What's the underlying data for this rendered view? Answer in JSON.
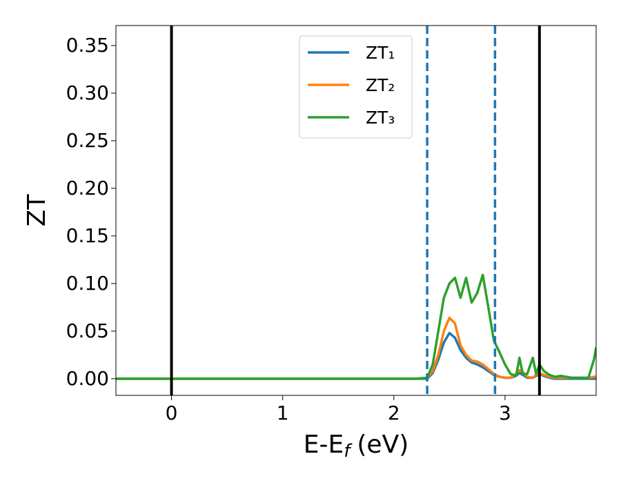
{
  "chart_data": {
    "type": "line",
    "ylabel": "ZT",
    "xlabel_parts": [
      "E-E",
      "f",
      "(eV)"
    ],
    "x": [
      -0.5,
      0,
      1,
      2,
      2.2,
      2.3,
      2.35,
      2.4,
      2.45,
      2.5,
      2.55,
      2.6,
      2.65,
      2.7,
      2.75,
      2.8,
      2.85,
      2.9,
      2.95,
      3.0,
      3.05,
      3.1,
      3.13,
      3.16,
      3.2,
      3.25,
      3.28,
      3.31,
      3.35,
      3.4,
      3.45,
      3.5,
      3.55,
      3.6,
      3.65,
      3.7,
      3.75,
      3.8,
      3.82
    ],
    "series": [
      {
        "name": "ZT₁",
        "color": "#1f77b4",
        "values": [
          0,
          0,
          0,
          0,
          0,
          0,
          0.006,
          0.02,
          0.038,
          0.048,
          0.043,
          0.03,
          0.022,
          0.017,
          0.015,
          0.012,
          0.008,
          0.004,
          0.002,
          0.001,
          0.001,
          0.003,
          0.006,
          0.004,
          0.001,
          0.001,
          0.003,
          0.005,
          0.003,
          0.001,
          0,
          0,
          0,
          0,
          0,
          0,
          0,
          0,
          0
        ]
      },
      {
        "name": "ZT₂",
        "color": "#ff7f0e",
        "values": [
          0,
          0,
          0,
          0,
          0,
          0.001,
          0.008,
          0.025,
          0.05,
          0.064,
          0.058,
          0.035,
          0.025,
          0.019,
          0.018,
          0.015,
          0.01,
          0.005,
          0.002,
          0.001,
          0.001,
          0.005,
          0.009,
          0.007,
          0.002,
          0.001,
          0.004,
          0.006,
          0.004,
          0.002,
          0.001,
          0.001,
          0.001,
          0.001,
          0.001,
          0.001,
          0.001,
          0.002,
          0.002
        ]
      },
      {
        "name": "ZT₃",
        "color": "#2ca02c",
        "values": [
          0,
          0,
          0,
          0,
          0,
          0.001,
          0.015,
          0.05,
          0.085,
          0.1,
          0.106,
          0.085,
          0.106,
          0.08,
          0.09,
          0.109,
          0.075,
          0.04,
          0.028,
          0.015,
          0.005,
          0.003,
          0.022,
          0.005,
          0.005,
          0.022,
          0.005,
          0.015,
          0.008,
          0.004,
          0.002,
          0.003,
          0.002,
          0.001,
          0.001,
          0.001,
          0.001,
          0.02,
          0.033
        ]
      }
    ],
    "vlines": [
      {
        "x": 0,
        "color": "#000000",
        "style": "solid"
      },
      {
        "x": 3.31,
        "color": "#000000",
        "style": "solid"
      },
      {
        "x": 2.3,
        "color": "#1f77b4",
        "style": "dashed"
      },
      {
        "x": 2.91,
        "color": "#1f77b4",
        "style": "dashed"
      }
    ],
    "xlim": [
      -0.5,
      3.82
    ],
    "ylim": [
      -0.0175,
      0.371
    ],
    "xticks": [
      0,
      1,
      2,
      3
    ],
    "yticks": [
      {
        "value": 0,
        "label": "0.00"
      },
      {
        "value": 0.05,
        "label": "0.05"
      },
      {
        "value": 0.1,
        "label": "0.10"
      },
      {
        "value": 0.15,
        "label": "0.15"
      },
      {
        "value": 0.2,
        "label": "0.20"
      },
      {
        "value": 0.25,
        "label": "0.25"
      },
      {
        "value": 0.3,
        "label": "0.30"
      },
      {
        "value": 0.35,
        "label": "0.35"
      }
    ],
    "legend": "upper center"
  }
}
